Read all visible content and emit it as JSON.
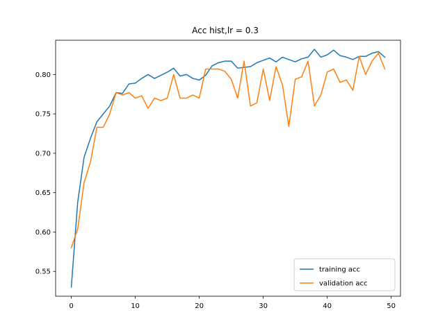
{
  "chart_data": {
    "type": "line",
    "title": "Acc hist,lr = 0.3",
    "xlabel": "",
    "ylabel": "",
    "xlim": [
      -2.45,
      51.45
    ],
    "ylim": [
      0.5185,
      0.8435
    ],
    "xticks": [
      0,
      10,
      20,
      30,
      40,
      50
    ],
    "yticks": [
      0.55,
      0.6,
      0.65,
      0.7,
      0.75,
      0.8
    ],
    "legend_position": "lower right",
    "grid": false,
    "series": [
      {
        "name": "training acc",
        "color": "#1f77b4",
        "x": [
          0,
          1,
          2,
          3,
          4,
          5,
          6,
          7,
          8,
          9,
          10,
          11,
          12,
          13,
          14,
          15,
          16,
          17,
          18,
          19,
          20,
          21,
          22,
          23,
          24,
          25,
          26,
          27,
          28,
          29,
          30,
          31,
          32,
          33,
          34,
          35,
          36,
          37,
          38,
          39,
          40,
          41,
          42,
          43,
          44,
          45,
          46,
          47,
          48,
          49
        ],
        "values": [
          0.53,
          0.638,
          0.695,
          0.719,
          0.74,
          0.75,
          0.76,
          0.777,
          0.776,
          0.788,
          0.789,
          0.795,
          0.8,
          0.795,
          0.799,
          0.803,
          0.808,
          0.798,
          0.8,
          0.795,
          0.793,
          0.799,
          0.811,
          0.815,
          0.817,
          0.817,
          0.808,
          0.809,
          0.81,
          0.815,
          0.818,
          0.821,
          0.816,
          0.822,
          0.819,
          0.816,
          0.82,
          0.822,
          0.832,
          0.822,
          0.825,
          0.831,
          0.824,
          0.822,
          0.819,
          0.823,
          0.823,
          0.827,
          0.829,
          0.822
        ]
      },
      {
        "name": "validation acc",
        "color": "#ff7f0e",
        "x": [
          0,
          1,
          2,
          3,
          4,
          5,
          6,
          7,
          8,
          9,
          10,
          11,
          12,
          13,
          14,
          15,
          16,
          17,
          18,
          19,
          20,
          21,
          22,
          23,
          24,
          25,
          26,
          27,
          28,
          29,
          30,
          31,
          32,
          33,
          34,
          35,
          36,
          37,
          38,
          39,
          40,
          41,
          42,
          43,
          44,
          45,
          46,
          47,
          48,
          49
        ],
        "values": [
          0.58,
          0.604,
          0.663,
          0.689,
          0.733,
          0.733,
          0.75,
          0.777,
          0.774,
          0.777,
          0.77,
          0.773,
          0.757,
          0.77,
          0.767,
          0.77,
          0.8,
          0.77,
          0.77,
          0.774,
          0.77,
          0.807,
          0.807,
          0.807,
          0.804,
          0.794,
          0.77,
          0.817,
          0.76,
          0.764,
          0.807,
          0.767,
          0.81,
          0.787,
          0.734,
          0.794,
          0.797,
          0.817,
          0.76,
          0.774,
          0.803,
          0.807,
          0.79,
          0.793,
          0.78,
          0.823,
          0.8,
          0.817,
          0.827,
          0.807
        ]
      }
    ]
  }
}
